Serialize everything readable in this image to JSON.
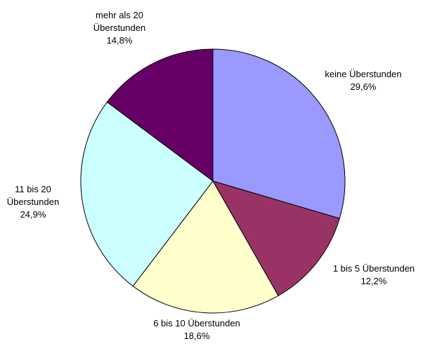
{
  "chart_data": {
    "type": "pie",
    "categories": [
      "keine Überstunden",
      "1 bis 5 Überstunden",
      "6 bis 10 Überstunden",
      "11 bis 20 Überstunden",
      "mehr als 20 Überstunden"
    ],
    "values": [
      29.6,
      12.2,
      18.6,
      24.9,
      14.8
    ],
    "value_labels": [
      "29,6%",
      "12,2%",
      "18,6%",
      "24,9%",
      "14,8%"
    ],
    "colors": [
      "#9999ff",
      "#993366",
      "#ffffcc",
      "#ccffff",
      "#660066"
    ]
  }
}
